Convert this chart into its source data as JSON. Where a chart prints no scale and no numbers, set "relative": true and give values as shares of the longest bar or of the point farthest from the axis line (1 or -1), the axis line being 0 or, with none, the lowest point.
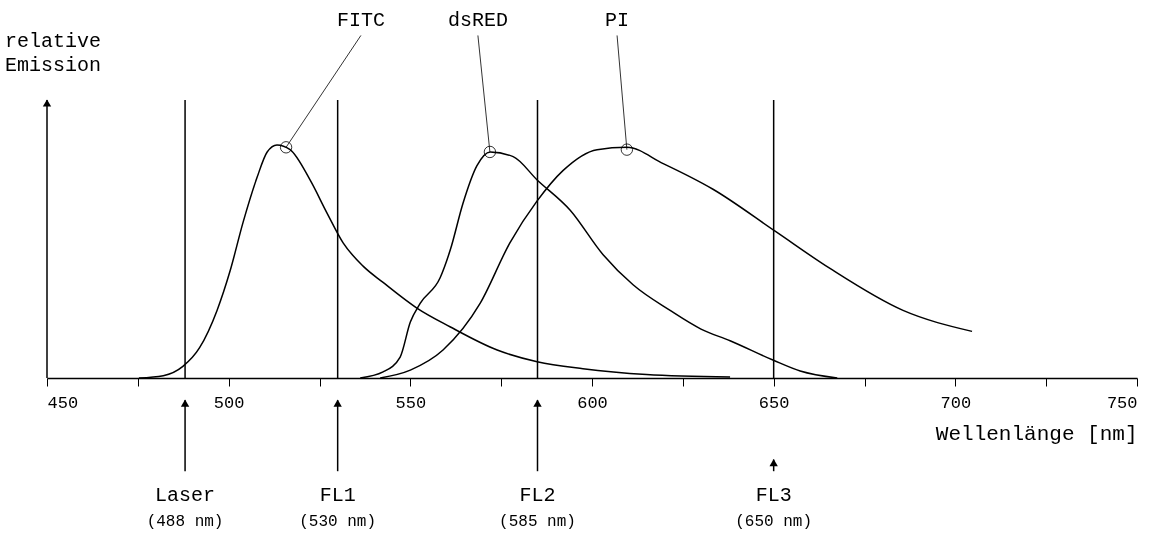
{
  "chart_data": {
    "type": "line",
    "relative": true,
    "ylabel": "relative Emission",
    "xlabel": "Wellenlänge [nm]",
    "xlim": [
      450,
      750
    ],
    "xticks": [
      450,
      {
        "value": 475,
        "label": null
      },
      500,
      {
        "value": 525,
        "label": null
      },
      550,
      {
        "value": 575,
        "label": null
      },
      600,
      {
        "value": 625,
        "label": null
      },
      650,
      {
        "value": 675,
        "label": null
      },
      700,
      {
        "value": 725,
        "label": null
      },
      750
    ],
    "series": [
      {
        "color": "#000000",
        "x": [
          475.3,
          482,
          487.4,
          492,
          496.8,
          500.4,
          504,
          507.8,
          510.6,
          513.3,
          516.9,
          522.4,
          527,
          531.5,
          537,
          542.5,
          551.8,
          560.9,
          573.9,
          584.9,
          597.5,
          615,
          638
        ],
        "values": [
          0,
          0.01,
          0.05,
          0.13,
          0.29,
          0.46,
          0.67,
          0.86,
          0.97,
          1,
          0.98,
          0.85,
          0.71,
          0.58,
          0.48,
          0.41,
          0.3,
          0.22,
          0.12,
          0.07,
          0.04,
          0.015,
          0.004
        ]
      },
      {
        "color": "#000000",
        "x": [
          536.2,
          542.5,
          547.2,
          550,
          552.7,
          558.2,
          561,
          564.5,
          568.3,
          572,
          578.3,
          584.9,
          594,
          603,
          611.3,
          621.5,
          630,
          638,
          649.8,
          657.3,
          667.5
        ],
        "values": [
          0,
          0.026,
          0.09,
          0.24,
          0.32,
          0.43,
          0.55,
          0.75,
          0.91,
          0.97,
          0.95,
          0.85,
          0.72,
          0.53,
          0.4,
          0.29,
          0.21,
          0.16,
          0.077,
          0.03,
          0
        ]
      },
      {
        "color": "#000000",
        "x": [
          541.7,
          550,
          559,
          569.2,
          577.4,
          584.9,
          592,
          601.4,
          609.6,
          619.6,
          633.3,
          650.4,
          665.5,
          685.6,
          704.6
        ],
        "values": [
          0,
          0.034,
          0.12,
          0.32,
          0.58,
          0.76,
          0.89,
          0.98,
          0.99,
          0.92,
          0.81,
          0.63,
          0.47,
          0.29,
          0.2
        ]
      }
    ],
    "annotations": [
      {
        "text": "FITC",
        "x": 515.8,
        "y": 0.99
      },
      {
        "text": "dsRED",
        "x": 571.9,
        "y": 0.97
      },
      {
        "text": "PI",
        "x": 609.6,
        "y": 0.98
      }
    ],
    "ref_lines": [
      {
        "axis": "x",
        "value": 488,
        "label": "Laser\n(488 nm)"
      },
      {
        "axis": "x",
        "value": 530,
        "label": "FL1\n(530 nm)"
      },
      {
        "axis": "x",
        "value": 585,
        "label": "FL2\n(585 nm)"
      },
      {
        "axis": "x",
        "value": 650,
        "label": "FL3\n(650 nm)"
      }
    ]
  }
}
